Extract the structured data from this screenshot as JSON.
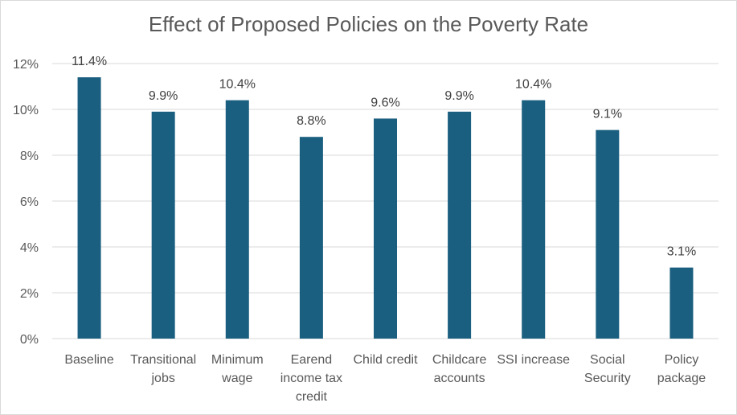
{
  "chart_data": {
    "type": "bar",
    "title": "Effect of Proposed Policies on the Poverty Rate",
    "xlabel": "",
    "ylabel": "",
    "categories": [
      [
        "Baseline"
      ],
      [
        "Transitional",
        "jobs"
      ],
      [
        "Minimum",
        "wage"
      ],
      [
        "Earend",
        "income tax",
        "credit"
      ],
      [
        "Child credit"
      ],
      [
        "Childcare",
        "accounts"
      ],
      [
        "SSI increase"
      ],
      [
        "Social",
        "Security"
      ],
      [
        "Policy",
        "package"
      ]
    ],
    "values": [
      11.4,
      9.9,
      10.4,
      8.8,
      9.6,
      9.9,
      10.4,
      9.1,
      3.1
    ],
    "data_labels": [
      "11.4%",
      "9.9%",
      "10.4%",
      "8.8%",
      "9.6%",
      "9.9%",
      "10.4%",
      "9.1%",
      "3.1%"
    ],
    "ylim": [
      0,
      12
    ],
    "yticks": [
      0,
      2,
      4,
      6,
      8,
      10,
      12
    ],
    "ytick_labels": [
      "0%",
      "2%",
      "4%",
      "6%",
      "8%",
      "10%",
      "12%"
    ],
    "grid": true,
    "legend": "none",
    "bar_color": "#1a5f7f",
    "grid_color": "#d9d9d9",
    "text_color": "#595959",
    "label_color": "#404040"
  }
}
